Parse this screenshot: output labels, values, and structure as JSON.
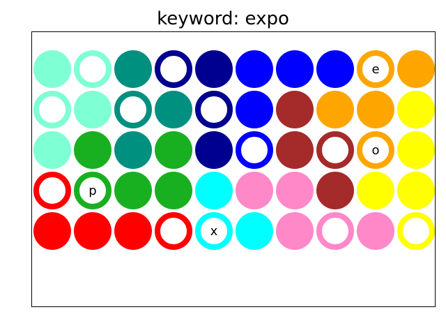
{
  "title": "keyword: expo",
  "palette": {
    "aquamarine": "#7fffd4",
    "teal": "#009080",
    "navy": "#000090",
    "blue": "#0000ff",
    "brown": "#a52a2a",
    "orange": "#ffa500",
    "yellow": "#ffff00",
    "green": "#18b020",
    "red": "#ff0000",
    "cyan": "#00ffff",
    "pink": "#ff88c8"
  },
  "grid": [
    [
      {
        "color": "aquamarine",
        "style": "filled",
        "letter": ""
      },
      {
        "color": "aquamarine",
        "style": "ring",
        "letter": ""
      },
      {
        "color": "teal",
        "style": "filled",
        "letter": ""
      },
      {
        "color": "navy",
        "style": "ring",
        "letter": ""
      },
      {
        "color": "navy",
        "style": "filled",
        "letter": ""
      },
      {
        "color": "blue",
        "style": "filled",
        "letter": ""
      },
      {
        "color": "blue",
        "style": "filled",
        "letter": ""
      },
      {
        "color": "blue",
        "style": "filled",
        "letter": ""
      },
      {
        "color": "orange",
        "style": "ring",
        "letter": "e"
      },
      {
        "color": "orange",
        "style": "filled",
        "letter": ""
      }
    ],
    [
      {
        "color": "aquamarine",
        "style": "ring",
        "letter": ""
      },
      {
        "color": "aquamarine",
        "style": "filled",
        "letter": ""
      },
      {
        "color": "teal",
        "style": "ring",
        "letter": ""
      },
      {
        "color": "teal",
        "style": "filled",
        "letter": ""
      },
      {
        "color": "navy",
        "style": "ring",
        "letter": ""
      },
      {
        "color": "blue",
        "style": "filled",
        "letter": ""
      },
      {
        "color": "brown",
        "style": "filled",
        "letter": ""
      },
      {
        "color": "orange",
        "style": "filled",
        "letter": ""
      },
      {
        "color": "orange",
        "style": "filled",
        "letter": ""
      },
      {
        "color": "yellow",
        "style": "filled",
        "letter": ""
      }
    ],
    [
      {
        "color": "aquamarine",
        "style": "filled",
        "letter": ""
      },
      {
        "color": "green",
        "style": "filled",
        "letter": ""
      },
      {
        "color": "teal",
        "style": "filled",
        "letter": ""
      },
      {
        "color": "green",
        "style": "filled",
        "letter": ""
      },
      {
        "color": "navy",
        "style": "filled",
        "letter": ""
      },
      {
        "color": "blue",
        "style": "ring",
        "letter": ""
      },
      {
        "color": "brown",
        "style": "filled",
        "letter": ""
      },
      {
        "color": "brown",
        "style": "ring",
        "letter": ""
      },
      {
        "color": "orange",
        "style": "ring",
        "letter": "o"
      },
      {
        "color": "yellow",
        "style": "filled",
        "letter": ""
      }
    ],
    [
      {
        "color": "red",
        "style": "ring",
        "letter": ""
      },
      {
        "color": "green",
        "style": "ring",
        "letter": "p"
      },
      {
        "color": "green",
        "style": "filled",
        "letter": ""
      },
      {
        "color": "green",
        "style": "filled",
        "letter": ""
      },
      {
        "color": "cyan",
        "style": "filled",
        "letter": ""
      },
      {
        "color": "pink",
        "style": "filled",
        "letter": ""
      },
      {
        "color": "pink",
        "style": "filled",
        "letter": ""
      },
      {
        "color": "brown",
        "style": "filled",
        "letter": ""
      },
      {
        "color": "yellow",
        "style": "filled",
        "letter": ""
      },
      {
        "color": "yellow",
        "style": "filled",
        "letter": ""
      }
    ],
    [
      {
        "color": "red",
        "style": "filled",
        "letter": ""
      },
      {
        "color": "red",
        "style": "filled",
        "letter": ""
      },
      {
        "color": "red",
        "style": "filled",
        "letter": ""
      },
      {
        "color": "red",
        "style": "ring",
        "letter": ""
      },
      {
        "color": "cyan",
        "style": "ring",
        "letter": "x"
      },
      {
        "color": "cyan",
        "style": "filled",
        "letter": ""
      },
      {
        "color": "pink",
        "style": "filled",
        "letter": ""
      },
      {
        "color": "pink",
        "style": "ring",
        "letter": ""
      },
      {
        "color": "pink",
        "style": "filled",
        "letter": ""
      },
      {
        "color": "yellow",
        "style": "ring",
        "letter": ""
      }
    ]
  ]
}
